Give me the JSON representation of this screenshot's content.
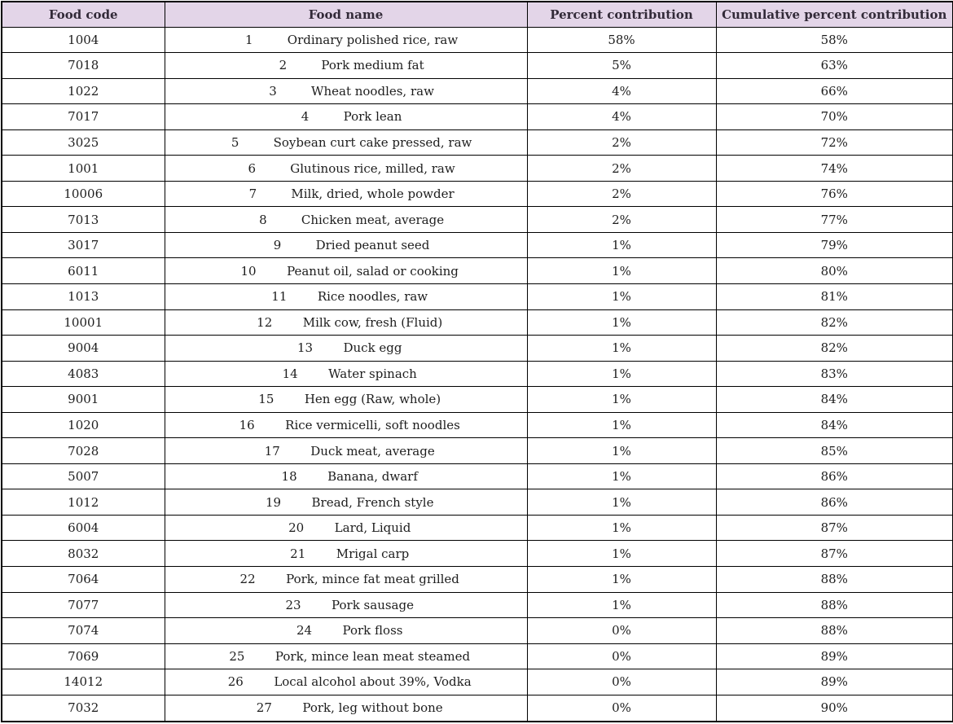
{
  "colors": {
    "header_background": "#e3d5e8",
    "header_text": "#322a38",
    "body_text": "#1d1d1d",
    "border": "#000000"
  },
  "table": {
    "columns": [
      "Food code",
      "Food name",
      "Percent contribution",
      "Cumulative percent contribution"
    ],
    "rows": [
      {
        "code": "1004",
        "rank": "1",
        "name": "Ordinary polished rice, raw",
        "percent": "58%",
        "cumulative": "58%"
      },
      {
        "code": "7018",
        "rank": "2",
        "name": "Pork medium fat",
        "percent": "5%",
        "cumulative": "63%"
      },
      {
        "code": "1022",
        "rank": "3",
        "name": "Wheat noodles, raw",
        "percent": "4%",
        "cumulative": "66%"
      },
      {
        "code": "7017",
        "rank": "4",
        "name": "Pork lean",
        "percent": "4%",
        "cumulative": "70%"
      },
      {
        "code": "3025",
        "rank": "5",
        "name": "Soybean curt cake pressed, raw",
        "percent": "2%",
        "cumulative": "72%"
      },
      {
        "code": "1001",
        "rank": "6",
        "name": "Glutinous rice, milled, raw",
        "percent": "2%",
        "cumulative": "74%"
      },
      {
        "code": "10006",
        "rank": "7",
        "name": "Milk, dried, whole powder",
        "percent": "2%",
        "cumulative": "76%"
      },
      {
        "code": "7013",
        "rank": "8",
        "name": "Chicken meat, average",
        "percent": "2%",
        "cumulative": "77%"
      },
      {
        "code": "3017",
        "rank": "9",
        "name": "Dried peanut seed",
        "percent": "1%",
        "cumulative": "79%"
      },
      {
        "code": "6011",
        "rank": "10",
        "name": "Peanut oil, salad or cooking",
        "percent": "1%",
        "cumulative": "80%"
      },
      {
        "code": "1013",
        "rank": "11",
        "name": "Rice noodles, raw",
        "percent": "1%",
        "cumulative": "81%"
      },
      {
        "code": "10001",
        "rank": "12",
        "name": "Milk cow, fresh (Fluid)",
        "percent": "1%",
        "cumulative": "82%"
      },
      {
        "code": "9004",
        "rank": "13",
        "name": "Duck egg",
        "percent": "1%",
        "cumulative": "82%"
      },
      {
        "code": "4083",
        "rank": "14",
        "name": "Water spinach",
        "percent": "1%",
        "cumulative": "83%"
      },
      {
        "code": "9001",
        "rank": "15",
        "name": "Hen egg (Raw, whole)",
        "percent": "1%",
        "cumulative": "84%"
      },
      {
        "code": "1020",
        "rank": "16",
        "name": "Rice vermicelli, soft noodles",
        "percent": "1%",
        "cumulative": "84%"
      },
      {
        "code": "7028",
        "rank": "17",
        "name": "Duck meat, average",
        "percent": "1%",
        "cumulative": "85%"
      },
      {
        "code": "5007",
        "rank": "18",
        "name": "Banana, dwarf",
        "percent": "1%",
        "cumulative": "86%"
      },
      {
        "code": "1012",
        "rank": "19",
        "name": "Bread, French style",
        "percent": "1%",
        "cumulative": "86%"
      },
      {
        "code": "6004",
        "rank": "20",
        "name": "Lard, Liquid",
        "percent": "1%",
        "cumulative": "87%"
      },
      {
        "code": "8032",
        "rank": "21",
        "name": "Mrigal carp",
        "percent": "1%",
        "cumulative": "87%"
      },
      {
        "code": "7064",
        "rank": "22",
        "name": "Pork, mince fat meat grilled",
        "percent": "1%",
        "cumulative": "88%"
      },
      {
        "code": "7077",
        "rank": "23",
        "name": "Pork sausage",
        "percent": "1%",
        "cumulative": "88%"
      },
      {
        "code": "7074",
        "rank": "24",
        "name": "Pork floss",
        "percent": "0%",
        "cumulative": "88%"
      },
      {
        "code": "7069",
        "rank": "25",
        "name": "Pork, mince lean meat steamed",
        "percent": "0%",
        "cumulative": "89%"
      },
      {
        "code": "14012",
        "rank": "26",
        "name": "Local alcohol about 39%, Vodka",
        "percent": "0%",
        "cumulative": "89%"
      },
      {
        "code": "7032",
        "rank": "27",
        "name": "Pork, leg without bone",
        "percent": "0%",
        "cumulative": "90%"
      }
    ]
  }
}
